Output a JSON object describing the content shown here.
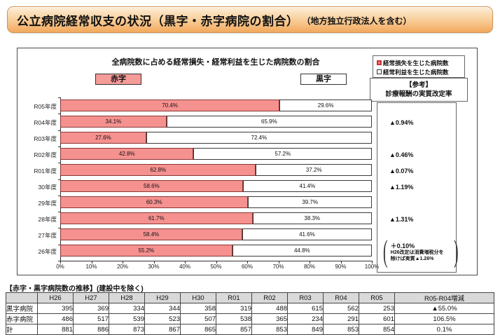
{
  "banner": {
    "title": "公立病院経常収支の状況（黒字・赤字病院の割合）",
    "subtitle": "（地方独立行政法人を含む）"
  },
  "chart": {
    "title": "全病院数に占める経常損失・経常利益を生じた病院数の割合",
    "deficit_label": "赤字",
    "surplus_label": "黒字",
    "legend": [
      {
        "label": "経常損失を生じた病院数",
        "color": "#F5918F"
      },
      {
        "label": "経常利益を生じた病院数",
        "color": "#FFFFFF"
      }
    ],
    "reference": {
      "heading_1": "【参考】",
      "heading_2": "診療報酬の実質改定率",
      "items": [
        {
          "row": 1,
          "value": "▲0.94%"
        },
        {
          "row": 3,
          "value": "▲0.46%"
        },
        {
          "row": 4,
          "value": "▲0.07%"
        },
        {
          "row": 5,
          "value": "▲1.19%"
        },
        {
          "row": 7,
          "value": "▲1.31%"
        }
      ],
      "note": {
        "row": 9,
        "value": "＋0.10%",
        "text_line1": "H26改定は消費増税分を",
        "text_line2": "除けば実質▲1.26%"
      }
    }
  },
  "chart_data": {
    "type": "bar",
    "orientation": "horizontal",
    "stacked": true,
    "categories": [
      "R05年度",
      "R04年度",
      "R03年度",
      "R02年度",
      "R01年度",
      "30年度",
      "29年度",
      "28年度",
      "27年度",
      "26年度"
    ],
    "series": [
      {
        "name": "経常損失を生じた病院数（赤字）",
        "color": "#F5918F",
        "values": [
          70.4,
          34.1,
          27.6,
          42.8,
          62.8,
          58.6,
          60.3,
          61.7,
          58.4,
          55.2
        ]
      },
      {
        "name": "経常利益を生じた病院数（黒字）",
        "color": "#FFFFFF",
        "values": [
          29.6,
          65.9,
          72.4,
          57.2,
          37.2,
          41.4,
          39.7,
          38.3,
          41.6,
          44.8
        ]
      }
    ],
    "xlim": [
      0,
      100
    ],
    "x_ticks": [
      "0%",
      "10%",
      "20%",
      "30%",
      "40%",
      "50%",
      "60%",
      "70%",
      "80%",
      "90%",
      "100%"
    ],
    "grid": false,
    "legend_position": "top-right"
  },
  "table": {
    "caption": "【赤字・黒字病院数の推移】(建設中を除く)",
    "columns": [
      "",
      "H26",
      "H27",
      "H28",
      "H29",
      "H30",
      "R01",
      "R02",
      "R03",
      "R04",
      "R05",
      "R05-R04増減"
    ],
    "rows": [
      {
        "label": "黒字病院",
        "values": [
          "395",
          "369",
          "334",
          "344",
          "358",
          "319",
          "488",
          "615",
          "562",
          "253"
        ],
        "change": "▲55.0%"
      },
      {
        "label": "赤字病院",
        "values": [
          "486",
          "517",
          "539",
          "523",
          "507",
          "538",
          "365",
          "234",
          "291",
          "601"
        ],
        "change": "106.5%"
      },
      {
        "label": "計",
        "values": [
          "881",
          "886",
          "873",
          "867",
          "865",
          "857",
          "853",
          "849",
          "853",
          "854"
        ],
        "change": "0.1%"
      }
    ]
  },
  "colors": {
    "deficit_fill": "#F5918F",
    "deficit_border": "#8C3836",
    "surplus_fill": "#FFFFFF",
    "banner_orange": "#F2A95E",
    "table_header_bg": "#D9D9D9"
  }
}
